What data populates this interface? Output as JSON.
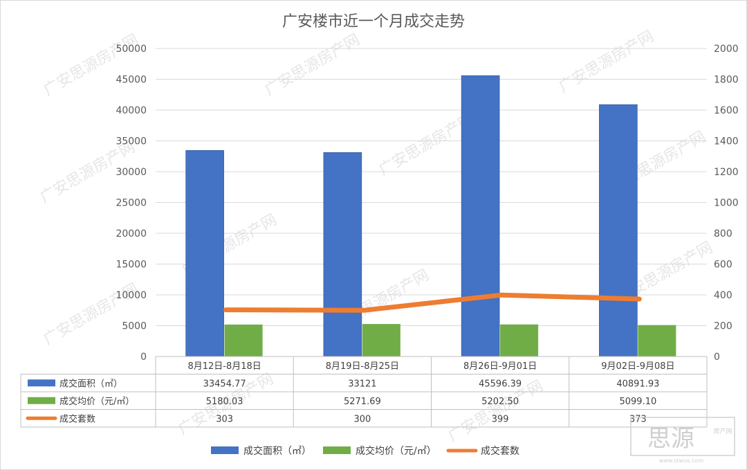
{
  "chart_data": {
    "type": "bar",
    "title": "广安楼市近一个月成交走势",
    "categories": [
      "8月12日-8月18日",
      "8月19日-8月25日",
      "8月26日-9月01日",
      "9月02日-9月08日"
    ],
    "series": [
      {
        "name": "成交面积（㎡）",
        "type": "bar",
        "axis": "left",
        "color": "#4472c4",
        "values": [
          33454.77,
          33121,
          45596.39,
          40891.93
        ],
        "labels": [
          "33454.77",
          "33121",
          "45596.39",
          "40891.93"
        ]
      },
      {
        "name": "成交均价（元/㎡）",
        "type": "bar",
        "axis": "left",
        "color": "#70ad47",
        "values": [
          5180.03,
          5271.69,
          5202.5,
          5099.1
        ],
        "labels": [
          "5180.03",
          "5271.69",
          "5202.50",
          "5099.10"
        ]
      },
      {
        "name": "成交套数",
        "type": "line",
        "axis": "right",
        "color": "#ed7d31",
        "values": [
          303,
          300,
          399,
          373
        ],
        "labels": [
          "303",
          "300",
          "399",
          "373"
        ]
      }
    ],
    "y_left": {
      "min": 0,
      "max": 50000,
      "ticks": [
        "0",
        "5000",
        "10000",
        "15000",
        "20000",
        "25000",
        "30000",
        "35000",
        "40000",
        "45000",
        "50000"
      ]
    },
    "y_right": {
      "min": 0,
      "max": 2000,
      "ticks": [
        "0",
        "200",
        "400",
        "600",
        "800",
        "1000",
        "1200",
        "1400",
        "1600",
        "1800",
        "2000"
      ]
    },
    "grid": true,
    "data_table": true,
    "legend": "bottom"
  },
  "watermark": {
    "text": "广安思源房产网",
    "logo_text": "思源",
    "logo_small": "房产网",
    "logo_url": "www.stwus.com"
  }
}
